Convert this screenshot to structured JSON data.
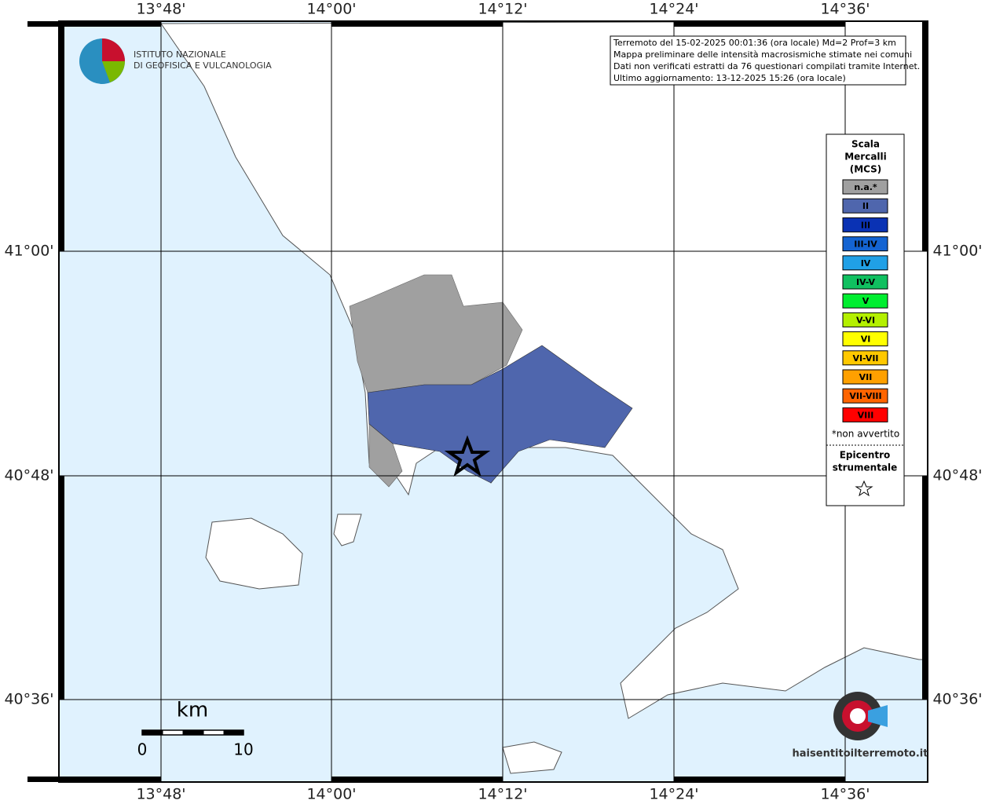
{
  "map": {
    "lon_labels": [
      "13°48'",
      "14°00'",
      "14°12'",
      "14°24'",
      "14°36'"
    ],
    "lat_labels": [
      "41°00'",
      "40°48'",
      "40°36'"
    ],
    "info": [
      "Terremoto del 15-02-2025 00:01:36 (ora locale) Md=2 Prof=3 km",
      "Mappa preliminare delle intensità macrosismiche stimate nei comuni",
      "Dati non verificati estratti da 76 questionari compilati tramite Internet.",
      "Ultimo aggiornamento: 13-12-2025 15:26 (ora locale)"
    ],
    "legend": {
      "title": [
        "Scala",
        "Mercalli",
        "(MCS)"
      ],
      "items": [
        {
          "label": "n.a.*",
          "color": "#a0a0a0"
        },
        {
          "label": "II",
          "color": "#4f66ad"
        },
        {
          "label": "III",
          "color": "#0a32b4"
        },
        {
          "label": "III-IV",
          "color": "#1464d2"
        },
        {
          "label": "IV",
          "color": "#20a0e6"
        },
        {
          "label": "IV-V",
          "color": "#10c060"
        },
        {
          "label": "V",
          "color": "#00ee30"
        },
        {
          "label": "V-VI",
          "color": "#b4f000"
        },
        {
          "label": "VI",
          "color": "#ffff00"
        },
        {
          "label": "VI-VII",
          "color": "#ffc800"
        },
        {
          "label": "VII",
          "color": "#ffa000"
        },
        {
          "label": "VII-VIII",
          "color": "#ff6400"
        },
        {
          "label": "VIII",
          "color": "#ff0000"
        }
      ],
      "note": "*non avvertito",
      "epicenter": [
        "Epicentro",
        "strumentale"
      ]
    },
    "scale": {
      "unit": "km",
      "labels": [
        "0",
        "10"
      ]
    },
    "logo": [
      "ISTITUTO NAZIONALE",
      "DI GEOFISICA E VULCANOLOGIA"
    ],
    "watermark": "haisentitoilterremoto.it"
  }
}
